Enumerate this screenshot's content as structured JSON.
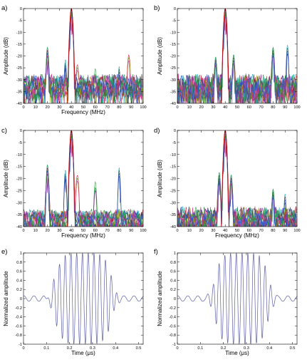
{
  "chart_data": [
    {
      "panel": "a)",
      "type": "line",
      "xlabel": "Frequency (MHz)",
      "ylabel": "Amplitude (dB)",
      "xlim": [
        0,
        100
      ],
      "ylim": [
        -40,
        0
      ],
      "xticks": [
        0,
        10,
        20,
        30,
        40,
        50,
        60,
        70,
        80,
        90,
        100
      ],
      "yticks": [
        0,
        -5,
        -10,
        -15,
        -20,
        -25,
        -30,
        -35,
        -40
      ],
      "grid": false,
      "main_lobe": {
        "center": 40,
        "peak": 0
      },
      "side_lobes": [
        {
          "x": 20,
          "y": -20
        },
        {
          "x": 20,
          "y": -23
        },
        {
          "x": 20,
          "y": -26
        },
        {
          "x": 35,
          "y": -25
        },
        {
          "x": 45,
          "y": -26
        },
        {
          "x": 60,
          "y": -29
        },
        {
          "x": 80,
          "y": -28
        },
        {
          "x": 88,
          "y": -22
        }
      ],
      "series_count": 10,
      "noise_floor": [
        -36,
        -26
      ]
    },
    {
      "panel": "b)",
      "type": "line",
      "xlabel": "",
      "ylabel": "Amplitude (dB)",
      "xlim": [
        0,
        100
      ],
      "ylim": [
        -40,
        0
      ],
      "xticks": [
        0,
        10,
        20,
        30,
        40,
        50,
        60,
        70,
        80,
        90,
        100
      ],
      "yticks": [
        0,
        -5,
        -10,
        -15,
        -20,
        -25,
        -30,
        -35,
        -40
      ],
      "grid": false,
      "main_lobe": {
        "center": 40,
        "peak": 0
      },
      "side_lobes": [
        {
          "x": 32,
          "y": -24
        },
        {
          "x": 47,
          "y": -23
        },
        {
          "x": 80,
          "y": -20
        },
        {
          "x": 92,
          "y": -19
        }
      ],
      "series_count": 10,
      "noise_floor": [
        -38,
        -24
      ]
    },
    {
      "panel": "c)",
      "type": "line",
      "xlabel": "Frequency (MHz)",
      "ylabel": "Amplitude (dB)",
      "xlim": [
        0,
        100
      ],
      "ylim": [
        -40,
        0
      ],
      "xticks": [
        0,
        10,
        20,
        30,
        40,
        50,
        60,
        70,
        80,
        90,
        100
      ],
      "yticks": [
        0,
        -5,
        -10,
        -15,
        -20,
        -25,
        -30,
        -35,
        -40
      ],
      "grid": false,
      "main_lobe": {
        "center": 40,
        "peak": 0
      },
      "side_lobes": [
        {
          "x": 20,
          "y": -18
        },
        {
          "x": 20,
          "y": -21
        },
        {
          "x": 20,
          "y": -24
        },
        {
          "x": 35,
          "y": -20
        },
        {
          "x": 45,
          "y": -21
        },
        {
          "x": 60,
          "y": -25
        },
        {
          "x": 80,
          "y": -19
        }
      ],
      "series_count": 10,
      "noise_floor": [
        -40,
        -32
      ]
    },
    {
      "panel": "d)",
      "type": "line",
      "xlabel": "Frequency (MHz)",
      "ylabel": "Amplitude (dB)",
      "xlim": [
        0,
        100
      ],
      "ylim": [
        -40,
        0
      ],
      "xticks": [
        0,
        10,
        20,
        30,
        40,
        50,
        60,
        70,
        80,
        90,
        100
      ],
      "yticks": [
        0,
        -5,
        -10,
        -15,
        -20,
        -25,
        -30,
        -35,
        -40
      ],
      "grid": false,
      "main_lobe": {
        "center": 40,
        "peak": 0
      },
      "side_lobes": [
        {
          "x": 35,
          "y": -21
        },
        {
          "x": 45,
          "y": -22
        },
        {
          "x": 80,
          "y": -28
        },
        {
          "x": 90,
          "y": -30
        }
      ],
      "series_count": 10,
      "noise_floor": [
        -40,
        -30
      ]
    },
    {
      "panel": "e)",
      "type": "line",
      "xlabel": "Time (μs)",
      "ylabel": "Normalized amplitude",
      "xlim": [
        0,
        0.52
      ],
      "ylim": [
        -1,
        1
      ],
      "xticks": [
        0,
        0.1,
        0.2,
        0.3,
        0.4,
        0.5
      ],
      "yticks": [
        1,
        0.8,
        0.6,
        0.4,
        0.2,
        0,
        -0.2,
        -0.4,
        -0.6,
        -0.8,
        -1
      ],
      "grid": false,
      "signal": {
        "carrier_MHz": 40,
        "envelope_center": 0.26,
        "envelope_span": [
          0.1,
          0.46
        ],
        "peak": 1
      }
    },
    {
      "panel": "f)",
      "type": "line",
      "xlabel": "Time (μs)",
      "ylabel": "Normalized amplitude",
      "xlim": [
        0,
        0.52
      ],
      "ylim": [
        -1,
        1
      ],
      "xticks": [
        0,
        0.1,
        0.2,
        0.3,
        0.4,
        0.5
      ],
      "yticks": [
        1,
        0.8,
        0.6,
        0.4,
        0.2,
        0,
        -0.2,
        -0.4,
        -0.6,
        -0.8,
        -1
      ],
      "grid": false,
      "signal": {
        "carrier_MHz": 40,
        "envelope_center": 0.28,
        "envelope_span": [
          0.12,
          0.46
        ],
        "peak": 1
      }
    }
  ],
  "colors": {
    "axes": "#000000",
    "main_lobe": "#cc0000",
    "waveform": "#5b5ea6",
    "series": [
      "#1f3ea8",
      "#0a7a2c",
      "#c8102e",
      "#18a9b5",
      "#7b2a8c",
      "#9c9c12",
      "#4b4b4b",
      "#2a9a3c",
      "#d23a8a",
      "#3355cc"
    ]
  }
}
